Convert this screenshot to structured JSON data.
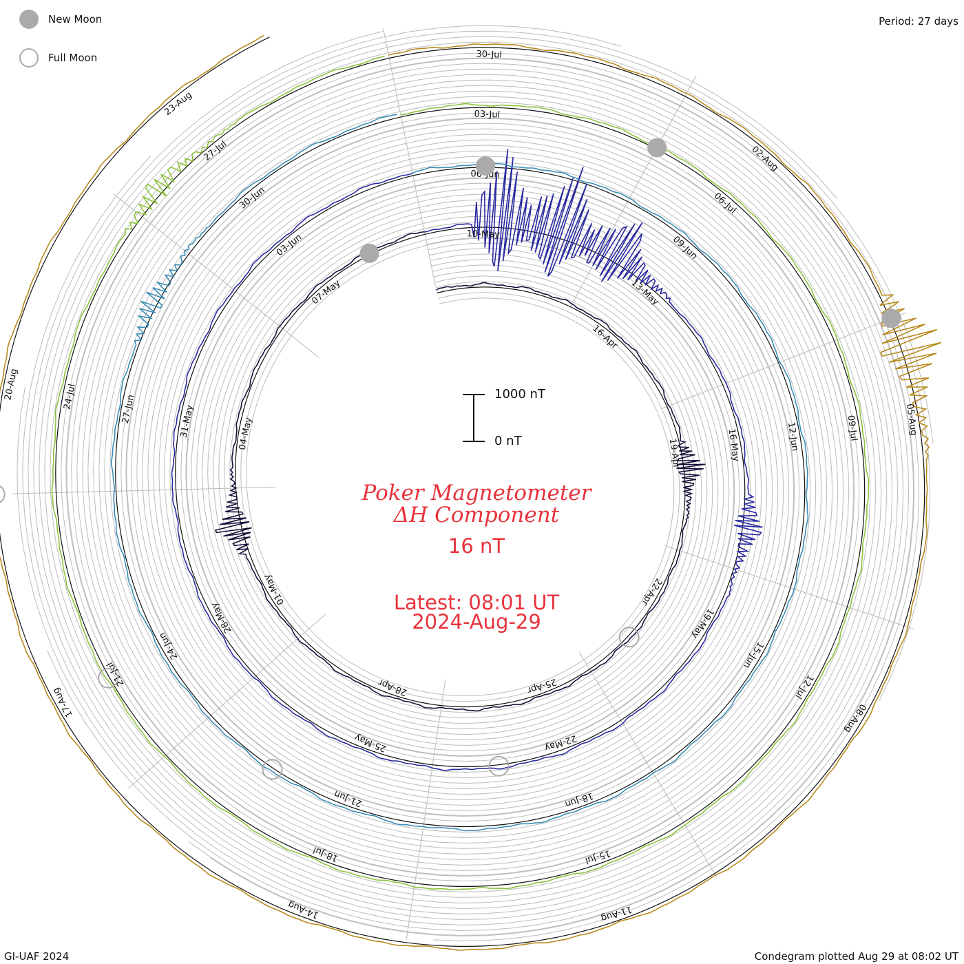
{
  "legend": {
    "new_moon": "New Moon",
    "full_moon": "Full Moon"
  },
  "period_label": "Period: 27 days",
  "credit": "GI-UAF 2024",
  "plotted_label": "Condegram plotted Aug 29 at 08:02 UT",
  "title_line1": "Poker Magnetometer",
  "title_line2": "ΔH Component",
  "latest_value": "16 nT",
  "latest_time": "Latest: 08:01 UT",
  "latest_date": "2024-Aug-29",
  "scale_bar": {
    "top_label": "1000 nT",
    "bottom_label": "0 nT"
  },
  "colors": {
    "text_red": "#e8323c",
    "grid": "#bbbbbb",
    "new_moon": "#aaaaaa"
  },
  "chart_data": {
    "type": "line",
    "title": "Poker Magnetometer ΔH Component",
    "period_days": 27,
    "units": "nT",
    "scale_nT": 1000,
    "cycles": [
      {
        "start": "2024-04-12",
        "color": "#14123a",
        "labels": [
          "16-Apr",
          "19-Apr",
          "22-Apr",
          "25-Apr",
          "28-Apr",
          "01-May",
          "04-May",
          "07-May",
          "10-May"
        ]
      },
      {
        "start": "2024-05-09",
        "color": "#2a2aa0",
        "labels": [
          "13-May",
          "16-May",
          "19-May",
          "22-May",
          "25-May",
          "28-May",
          "31-May",
          "03-Jun",
          "06-Jun"
        ]
      },
      {
        "start": "2024-06-05",
        "color": "#3a8cb4",
        "labels": [
          "09-Jun",
          "12-Jun",
          "15-Jun",
          "18-Jun",
          "21-Jun",
          "24-Jun",
          "27-Jun",
          "30-Jun",
          "03-Jul"
        ]
      },
      {
        "start": "2024-07-02",
        "color": "#8cc23c",
        "labels": [
          "06-Jul",
          "09-Jul",
          "12-Jul",
          "15-Jul",
          "18-Jul",
          "21-Jul",
          "24-Jul",
          "27-Jul",
          "30-Jul"
        ]
      },
      {
        "start": "2024-07-29",
        "color": "#b88a1e",
        "labels": [
          "02-Aug",
          "05-Aug",
          "08-Aug",
          "11-Aug",
          "14-Aug",
          "17-Aug",
          "20-Aug",
          "23-Aug"
        ]
      }
    ],
    "new_moons": [
      "2024-05-08",
      "2024-06-06",
      "2024-07-05",
      "2024-08-04"
    ],
    "full_moons": [
      "2024-04-23",
      "2024-05-23",
      "2024-06-22",
      "2024-07-21",
      "2024-08-19"
    ],
    "disturbances": [
      {
        "date": "2024-05-10",
        "peak_nT": 1700
      },
      {
        "date": "2024-05-11",
        "peak_nT": 1500
      },
      {
        "date": "2024-05-12",
        "peak_nT": 900
      },
      {
        "date": "2024-08-04",
        "peak_nT": 900
      },
      {
        "date": "2024-04-19",
        "peak_nT": 400
      },
      {
        "date": "2024-05-02",
        "peak_nT": 500
      },
      {
        "date": "2024-05-17",
        "peak_nT": 400
      },
      {
        "date": "2024-06-28",
        "peak_nT": 300
      },
      {
        "date": "2024-07-26",
        "peak_nT": 300
      }
    ]
  }
}
